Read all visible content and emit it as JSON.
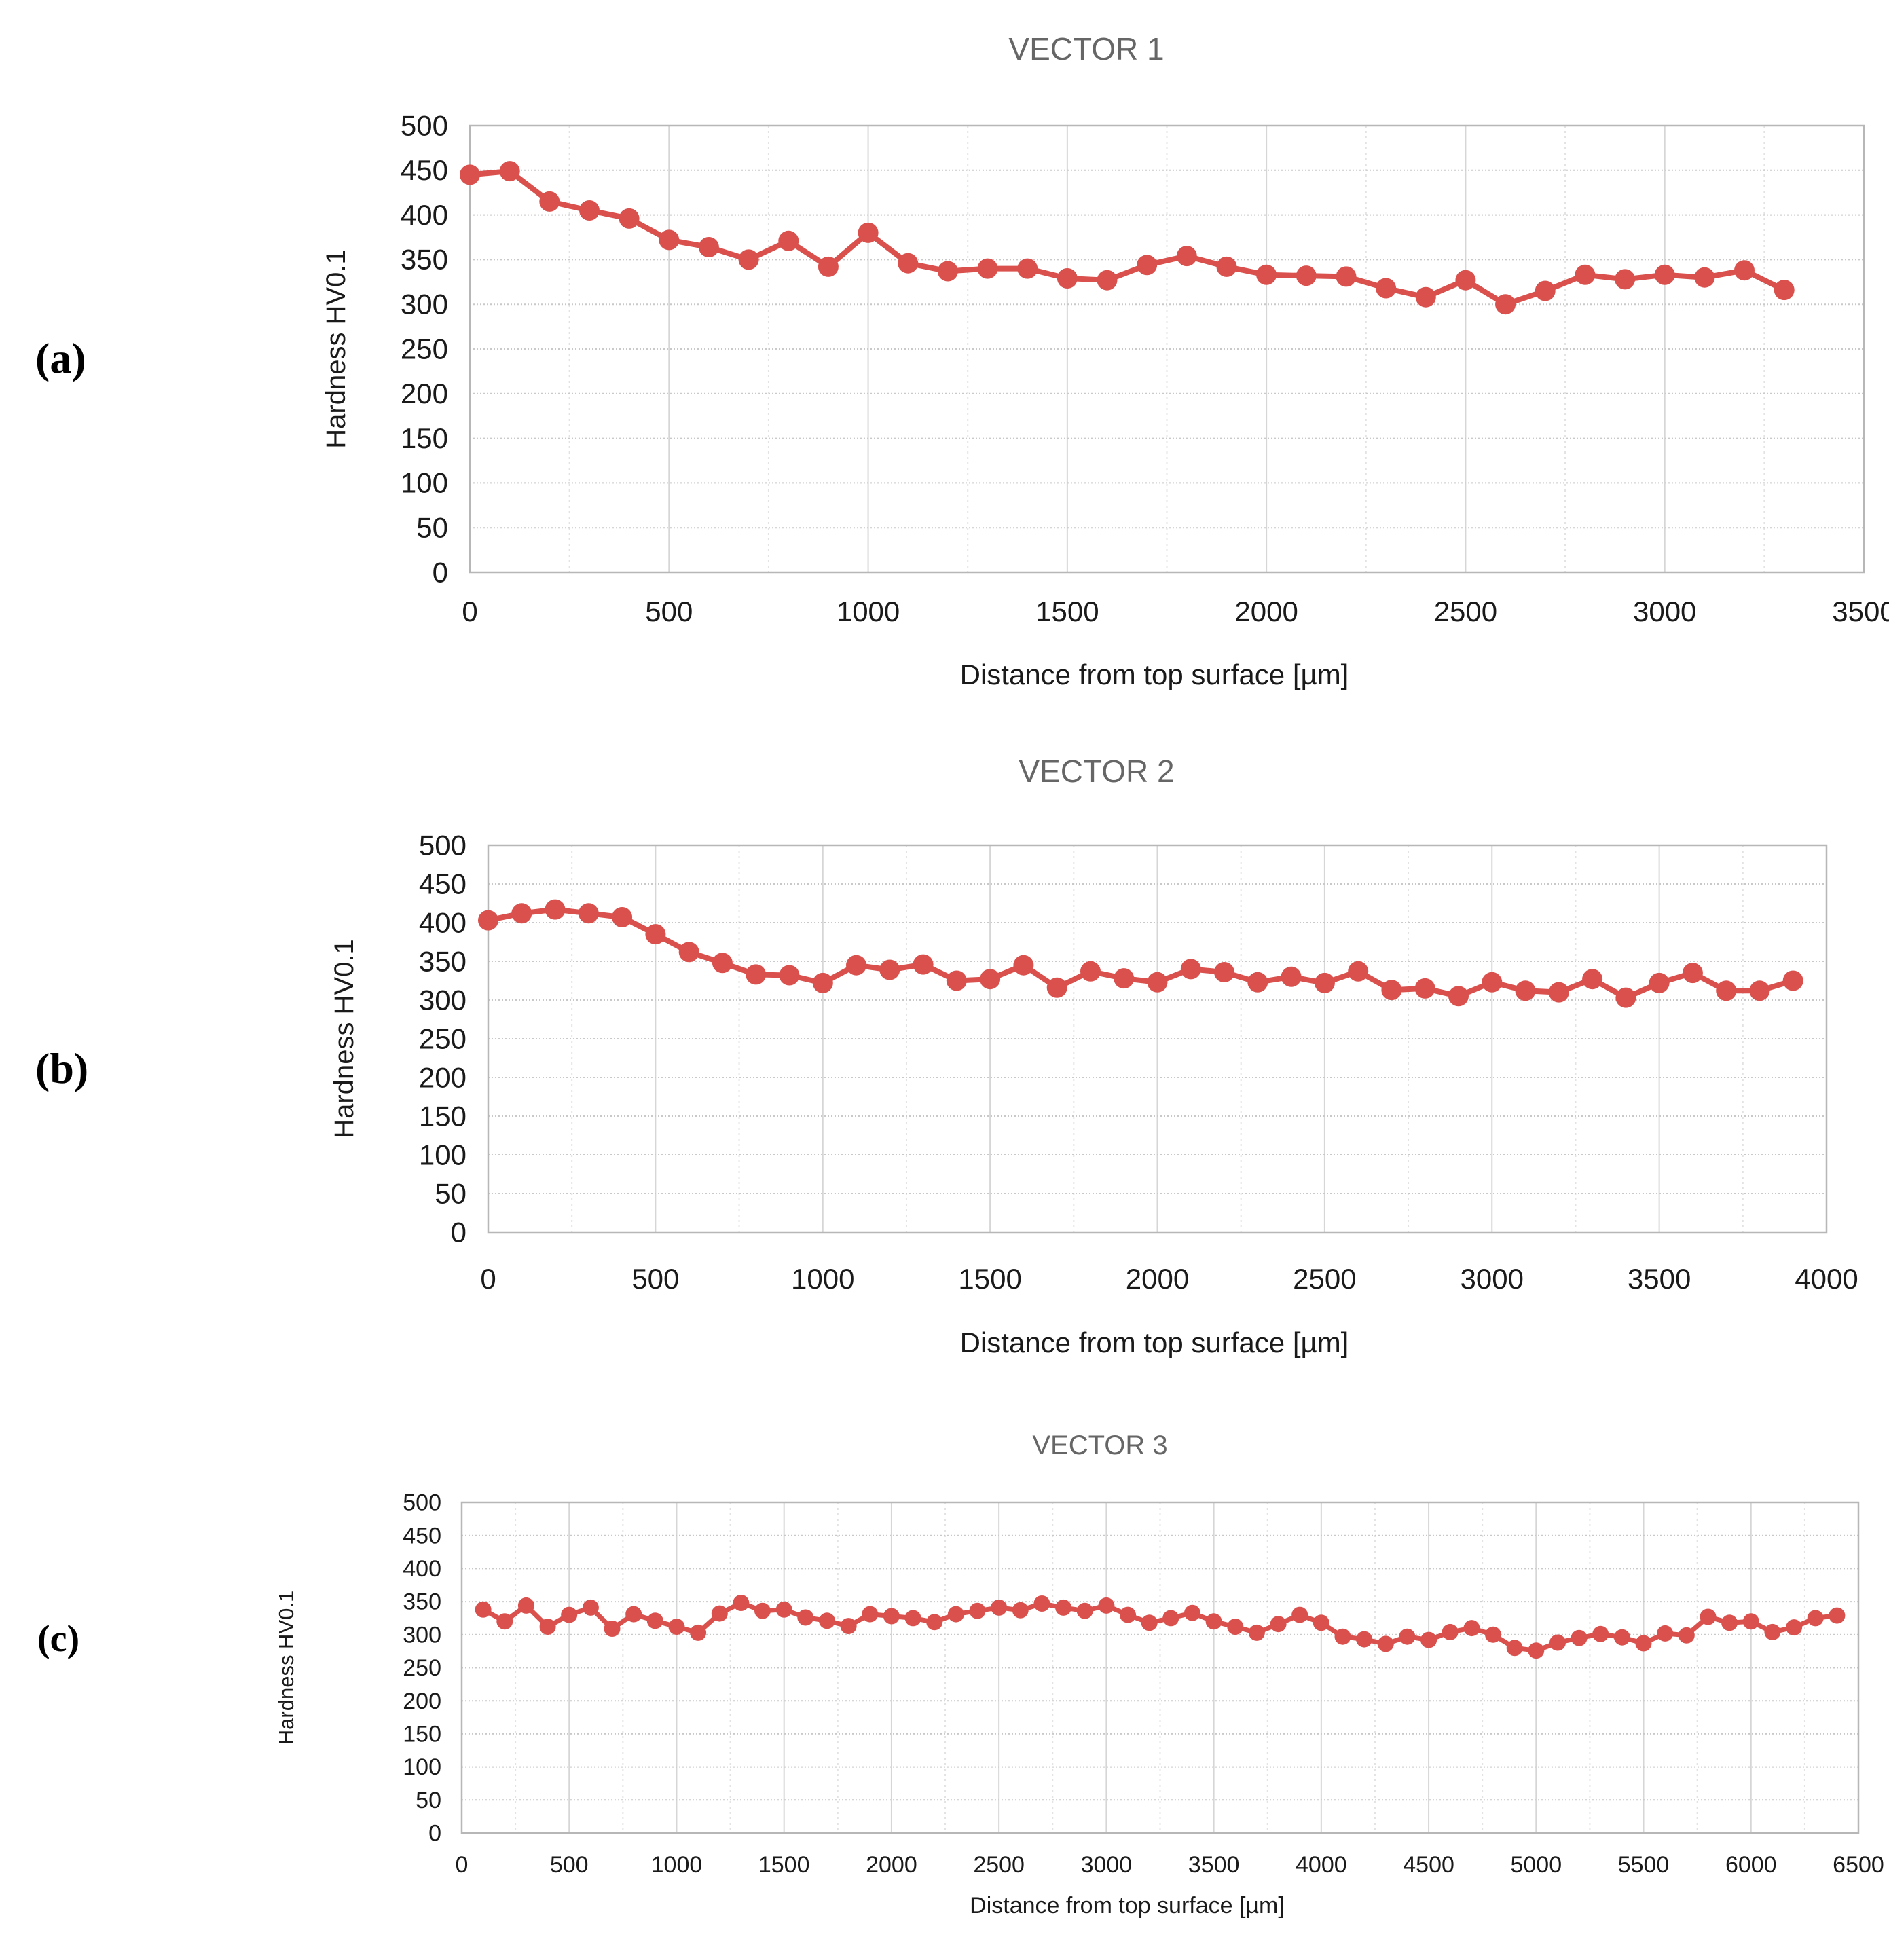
{
  "page_background": "#ffffff",
  "panel_letters": {
    "a": "(a)",
    "b": "(b)",
    "c": "(c)"
  },
  "colors": {
    "series": "#d9504c",
    "grid_horizontal": "#c9c9c9",
    "grid_vertical_major": "#d6d6d6",
    "grid_vertical_minor": "#e3e3e3",
    "plot_border": "#b7b7b7",
    "title_text": "#666666",
    "tick_text": "#1a1a1a"
  },
  "chart_data": [
    {
      "type": "line",
      "title": "VECTOR 1",
      "xlabel": "Distance from top surface [µm]",
      "ylabel": "Hardness HV0.1",
      "x_start": 0,
      "x_step": 100,
      "xlim": [
        0,
        3500
      ],
      "ylim": [
        0,
        500
      ],
      "x_ticks": [
        0,
        500,
        1000,
        1500,
        2000,
        2500,
        3000,
        3500
      ],
      "y_ticks": [
        0,
        50,
        100,
        150,
        200,
        250,
        300,
        350,
        400,
        450,
        500
      ],
      "grid": "on",
      "legend": "none",
      "values": [
        445,
        449,
        415,
        405,
        396,
        372,
        364,
        350,
        371,
        342,
        380,
        346,
        337,
        340,
        340,
        329,
        327,
        344,
        354,
        342,
        333,
        332,
        331,
        318,
        308,
        327,
        300,
        315,
        333,
        328,
        333,
        330,
        338,
        316
      ]
    },
    {
      "type": "line",
      "title": "VECTOR 2",
      "xlabel": "Distance from top surface [µm]",
      "ylabel": "Hardness HV0.1",
      "x_start": 0,
      "x_step": 100,
      "xlim": [
        0,
        4000
      ],
      "ylim": [
        0,
        500
      ],
      "x_ticks": [
        0,
        500,
        1000,
        1500,
        2000,
        2500,
        3000,
        3500,
        4000
      ],
      "y_ticks": [
        0,
        50,
        100,
        150,
        200,
        250,
        300,
        350,
        400,
        450,
        500
      ],
      "grid": "on",
      "legend": "none",
      "values": [
        403,
        412,
        417,
        412,
        407,
        385,
        362,
        348,
        333,
        332,
        322,
        345,
        339,
        346,
        325,
        327,
        345,
        316,
        337,
        328,
        323,
        340,
        336,
        323,
        330,
        322,
        337,
        313,
        315,
        305,
        323,
        312,
        310,
        327,
        303,
        322,
        335,
        312,
        312,
        325
      ]
    },
    {
      "type": "line",
      "title": "VECTOR 3",
      "xlabel": "Distance from top surface [µm]",
      "ylabel": "Hardness HV0.1",
      "x_start": 100,
      "x_step": 100,
      "xlim": [
        0,
        6500
      ],
      "ylim": [
        0,
        500
      ],
      "x_ticks": [
        0,
        500,
        1000,
        1500,
        2000,
        2500,
        3000,
        3500,
        4000,
        4500,
        5000,
        5500,
        6000,
        6500
      ],
      "y_ticks": [
        0,
        50,
        100,
        150,
        200,
        250,
        300,
        350,
        400,
        450,
        500
      ],
      "grid": "on",
      "legend": "none",
      "values": [
        338,
        320,
        344,
        312,
        330,
        341,
        309,
        331,
        321,
        312,
        303,
        332,
        348,
        336,
        338,
        326,
        321,
        313,
        331,
        328,
        325,
        319,
        331,
        336,
        341,
        337,
        347,
        341,
        336,
        344,
        330,
        318,
        325,
        333,
        320,
        312,
        303,
        316,
        330,
        318,
        297,
        293,
        286,
        297,
        292,
        304,
        310,
        300,
        280,
        276,
        288,
        295,
        301,
        296,
        287,
        302,
        299,
        327,
        318,
        320,
        304,
        311,
        325,
        329
      ]
    }
  ]
}
